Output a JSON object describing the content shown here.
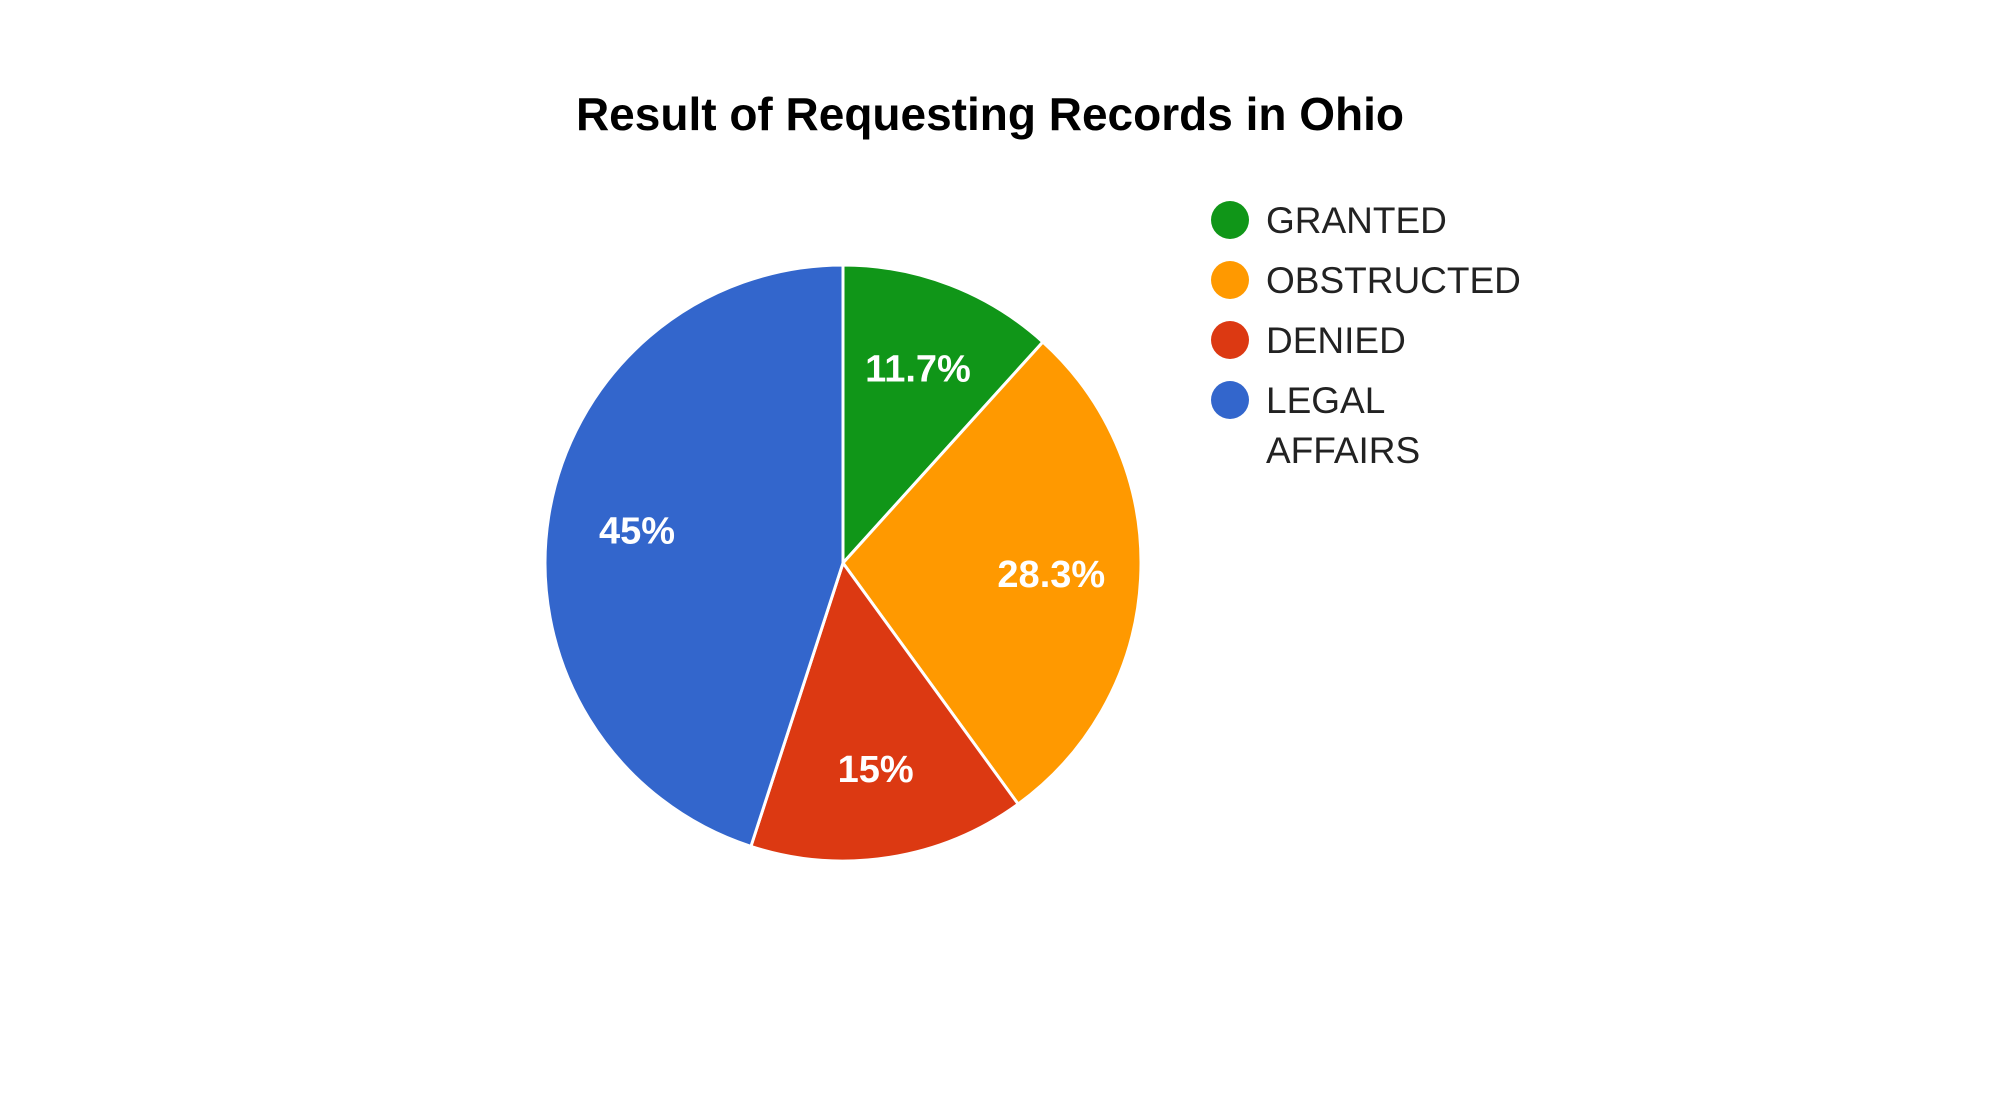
{
  "chart_data": {
    "type": "pie",
    "title": "Result of Requesting Records in Ohio",
    "categories": [
      "GRANTED",
      "OBSTRUCTED",
      "DENIED",
      "LEGAL AFFAIRS"
    ],
    "values": [
      11.7,
      28.3,
      15,
      45
    ],
    "data_labels": [
      "11.7%",
      "28.3%",
      "15%",
      "45%"
    ],
    "colors": [
      "#109618",
      "#ff9900",
      "#dc3912",
      "#3366cc"
    ],
    "legend_position": "right",
    "legend_lines": [
      [
        "GRANTED"
      ],
      [
        "OBSTRUCTED"
      ],
      [
        "DENIED"
      ],
      [
        "LEGAL",
        "AFFAIRS"
      ]
    ],
    "start_angle_deg": 0,
    "direction": "clockwise"
  }
}
